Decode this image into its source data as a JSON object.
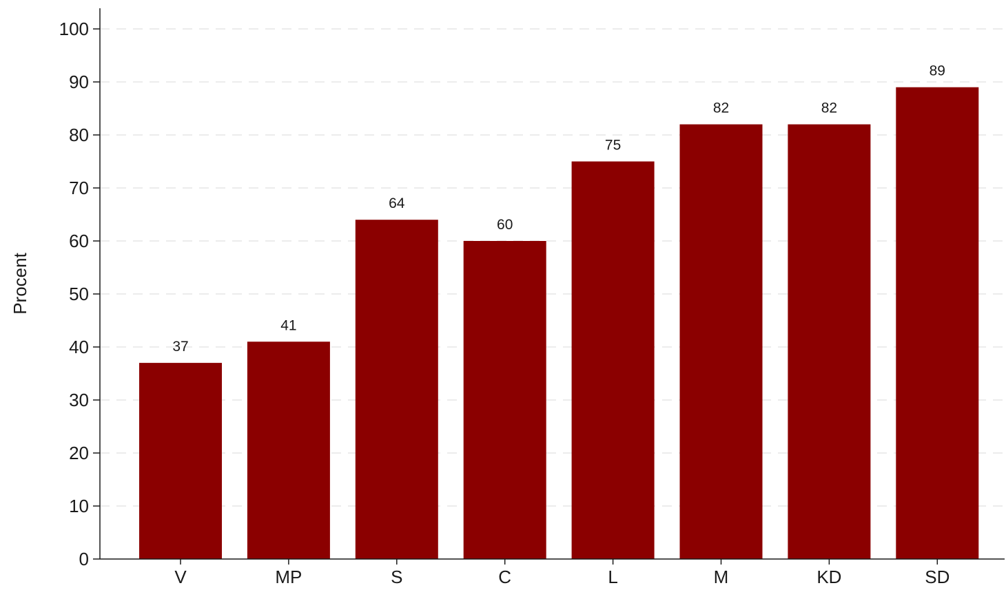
{
  "chart_data": {
    "type": "bar",
    "categories": [
      "V",
      "MP",
      "S",
      "C",
      "L",
      "M",
      "KD",
      "SD"
    ],
    "values": [
      37,
      41,
      64,
      60,
      75,
      82,
      82,
      89
    ],
    "data_labels": [
      "37",
      "41",
      "64",
      "60",
      "75",
      "82",
      "82",
      "89"
    ],
    "title": "",
    "xlabel": "",
    "ylabel": "Procent",
    "ylim": [
      0,
      100
    ],
    "yticks": [
      0,
      10,
      20,
      30,
      40,
      50,
      60,
      70,
      80,
      90,
      100
    ],
    "grid": true,
    "bar_color": "#8b0000",
    "legend": "none"
  }
}
